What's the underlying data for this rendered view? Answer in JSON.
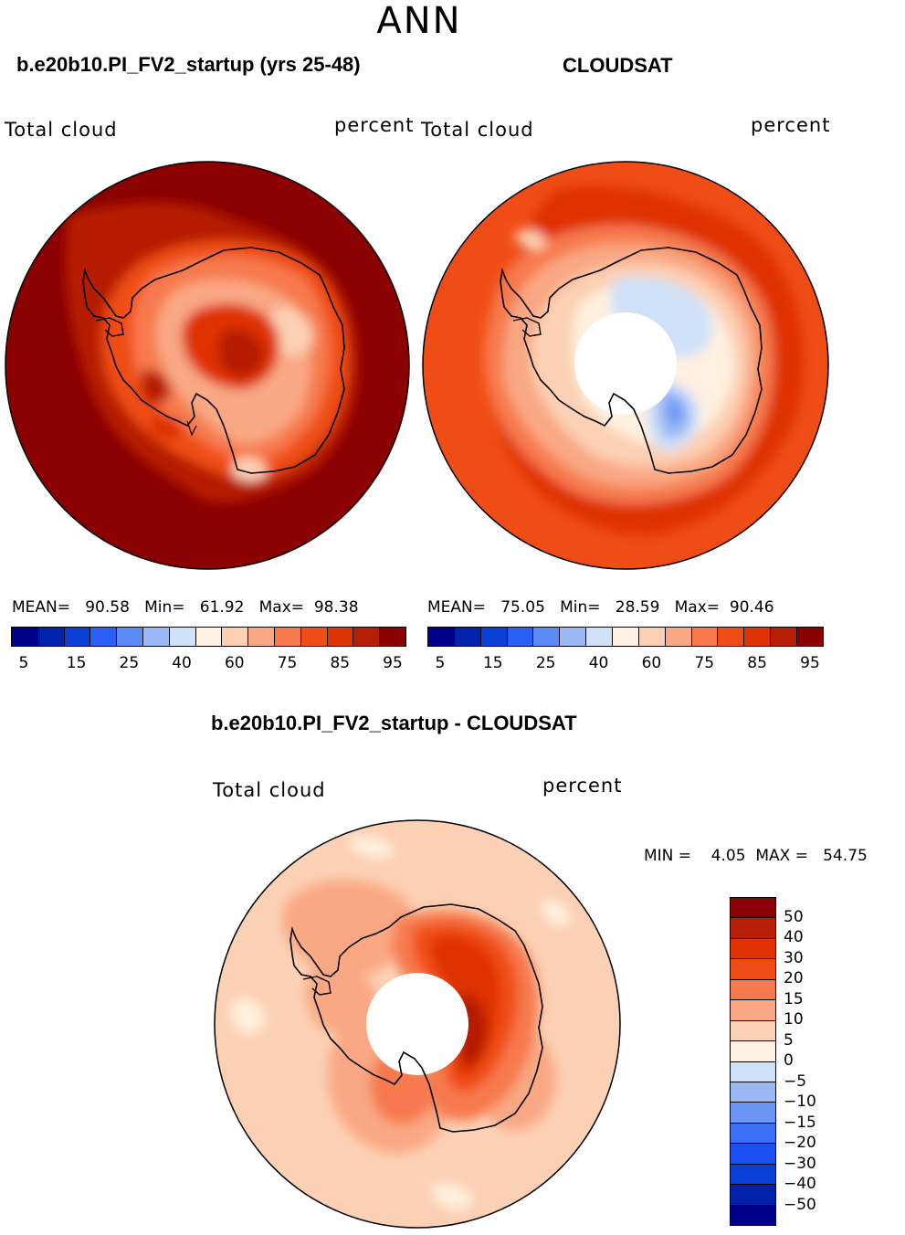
{
  "header": {
    "season": "ANN"
  },
  "panels": [
    {
      "title": "b.e20b10.PI_FV2_startup (yrs 25-48)",
      "variable": "Total cloud",
      "units": "percent",
      "stats": {
        "mean_label": "MEAN=",
        "mean": "90.58",
        "min_label": "Min=",
        "min": "61.92",
        "max_label": "Max=",
        "max": "98.38"
      }
    },
    {
      "title": "CLOUDSAT",
      "variable": "Total cloud",
      "units": "percent",
      "stats": {
        "mean_label": "MEAN=",
        "mean": "75.05",
        "min_label": "Min=",
        "min": "28.59",
        "max_label": "Max=",
        "max": "90.46"
      }
    }
  ],
  "diff_panel": {
    "title": "b.e20b10.PI_FV2_startup - CLOUDSAT",
    "variable": "Total cloud",
    "units": "percent",
    "stats": {
      "min_label": "MIN =",
      "min": "4.05",
      "max_label": "MAX =",
      "max": "54.75"
    }
  },
  "abs_colorbar": {
    "colors": [
      "#00008b",
      "#0022aa",
      "#0a3fd8",
      "#2a60f5",
      "#5b8cf5",
      "#9bb8f6",
      "#cfe1f8",
      "#fff0df",
      "#fcd0b4",
      "#f9a883",
      "#f67a4d",
      "#f04d16",
      "#df3205",
      "#b51d05",
      "#8b0000"
    ],
    "tick_labels": [
      "5",
      "15",
      "25",
      "40",
      "60",
      "75",
      "85",
      "95"
    ]
  },
  "diff_colorbar": {
    "colors": [
      "#00008b",
      "#0022aa",
      "#0a3fd8",
      "#1a50f2",
      "#3a70f5",
      "#6b96f5",
      "#9bb8f6",
      "#cfe1f8",
      "#fff0df",
      "#fcd0b4",
      "#f9a883",
      "#f67a4d",
      "#f04d16",
      "#df3205",
      "#b51d05",
      "#8b0000"
    ],
    "tick_labels": [
      "50",
      "40",
      "30",
      "20",
      "15",
      "10",
      "5",
      "0",
      "−5",
      "−10",
      "−15",
      "−20",
      "−30",
      "−40",
      "−50"
    ]
  }
}
